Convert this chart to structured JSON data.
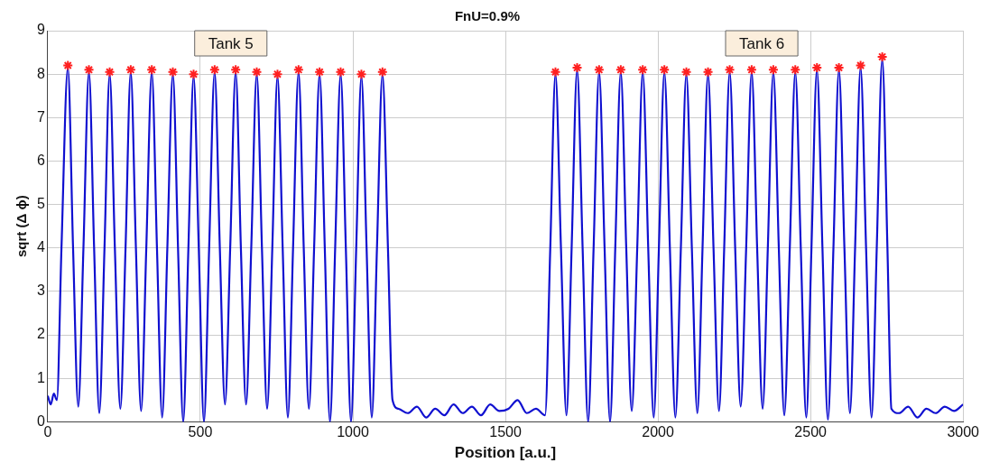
{
  "chart_data": {
    "type": "line",
    "title": "FnU=0.9%",
    "xlabel": "Position [a.u.]",
    "ylabel": "sqrt (Δ ϕ)",
    "xlim": [
      0,
      3000
    ],
    "xticks": [
      0,
      500,
      1000,
      1500,
      2000,
      2500,
      3000
    ],
    "ylim": [
      0,
      9
    ],
    "yticks": [
      0,
      1,
      2,
      3,
      4,
      5,
      6,
      7,
      8,
      9
    ],
    "grid": true,
    "legend": false,
    "annotations": [
      "Tank 5",
      "Tank 6"
    ],
    "series": [
      {
        "color": "#1010d0",
        "marker": "none",
        "line_style": "solid",
        "x": [
          0,
          10,
          20,
          30,
          45,
          66,
          83,
          100,
          117,
          135,
          152,
          169,
          186,
          203,
          220,
          238,
          255,
          272,
          289,
          306,
          323,
          341,
          358,
          375,
          392,
          410,
          427,
          444,
          461,
          478,
          495,
          512,
          529,
          547,
          564,
          581,
          598,
          616,
          633,
          650,
          667,
          685,
          702,
          719,
          736,
          753,
          770,
          787,
          804,
          822,
          839,
          856,
          873,
          891,
          908,
          925,
          942,
          960,
          977,
          994,
          1011,
          1028,
          1045,
          1062,
          1079,
          1097,
          1115,
          1130,
          1150,
          1180,
          1210,
          1240,
          1270,
          1300,
          1330,
          1360,
          1390,
          1420,
          1450,
          1480,
          1510,
          1540,
          1570,
          1600,
          1630,
          1647,
          1664,
          1682,
          1700,
          1717,
          1735,
          1753,
          1771,
          1789,
          1807,
          1825,
          1843,
          1860,
          1878,
          1896,
          1914,
          1932,
          1950,
          1968,
          1986,
          2003,
          2021,
          2039,
          2057,
          2075,
          2093,
          2111,
          2129,
          2146,
          2164,
          2182,
          2200,
          2217,
          2235,
          2253,
          2271,
          2289,
          2307,
          2325,
          2343,
          2360,
          2378,
          2396,
          2414,
          2432,
          2450,
          2468,
          2486,
          2503,
          2521,
          2539,
          2557,
          2575,
          2593,
          2611,
          2629,
          2646,
          2664,
          2682,
          2700,
          2717,
          2735,
          2752,
          2765,
          2790,
          2820,
          2850,
          2880,
          2910,
          2940,
          2970,
          3000
        ],
        "values": [
          0.6,
          0.4,
          0.65,
          0.5,
          4,
          8.15,
          4,
          0.35,
          4,
          8.05,
          4,
          0.2,
          4,
          8.0,
          4,
          0.3,
          4,
          8.05,
          4,
          0.25,
          4,
          8.05,
          4,
          0.1,
          4,
          8.0,
          4,
          0.0,
          4,
          7.95,
          4,
          0.0,
          4,
          8.05,
          4,
          0.4,
          4,
          8.05,
          4,
          0.4,
          4,
          8.0,
          4,
          0.3,
          4,
          7.95,
          4,
          0.1,
          4,
          8.05,
          4,
          0.3,
          4,
          8.0,
          4,
          0.0,
          4,
          8.0,
          4,
          0.0,
          4,
          7.95,
          4,
          0.1,
          4,
          8.0,
          4,
          0.5,
          0.3,
          0.2,
          0.35,
          0.1,
          0.3,
          0.15,
          0.4,
          0.2,
          0.35,
          0.15,
          0.4,
          0.25,
          0.3,
          0.5,
          0.2,
          0.3,
          0.15,
          4,
          8.0,
          4,
          0.15,
          4,
          8.1,
          4,
          0.0,
          4,
          8.05,
          4,
          0.0,
          4,
          8.05,
          4,
          0.25,
          4,
          8.05,
          4,
          0.1,
          4,
          8.05,
          4,
          0.1,
          4,
          8.0,
          4,
          0.2,
          4,
          8.0,
          4,
          0.25,
          4,
          8.05,
          4,
          0.35,
          4,
          8.05,
          4,
          0.3,
          4,
          8.05,
          4,
          0.15,
          4,
          8.05,
          4,
          0.1,
          4,
          8.1,
          4,
          0.05,
          4,
          8.1,
          4,
          0.2,
          4,
          8.15,
          4,
          0.1,
          4,
          8.35,
          4,
          0.3,
          0.2,
          0.35,
          0.1,
          0.3,
          0.2,
          0.35,
          0.25,
          0.4
        ]
      },
      {
        "type": "scatter",
        "color": "#ff2020",
        "marker": "cross",
        "x": [
          66,
          135,
          203,
          272,
          341,
          410,
          478,
          547,
          616,
          685,
          753,
          822,
          891,
          960,
          1028,
          1097,
          1664,
          1735,
          1807,
          1878,
          1950,
          2021,
          2093,
          2164,
          2235,
          2307,
          2378,
          2450,
          2521,
          2593,
          2664,
          2735
        ],
        "values": [
          8.2,
          8.1,
          8.05,
          8.1,
          8.1,
          8.05,
          8.0,
          8.1,
          8.1,
          8.05,
          8.0,
          8.1,
          8.05,
          8.05,
          8.0,
          8.05,
          8.05,
          8.15,
          8.1,
          8.1,
          8.1,
          8.1,
          8.05,
          8.05,
          8.1,
          8.1,
          8.1,
          8.1,
          8.15,
          8.15,
          8.2,
          8.4
        ]
      }
    ]
  }
}
